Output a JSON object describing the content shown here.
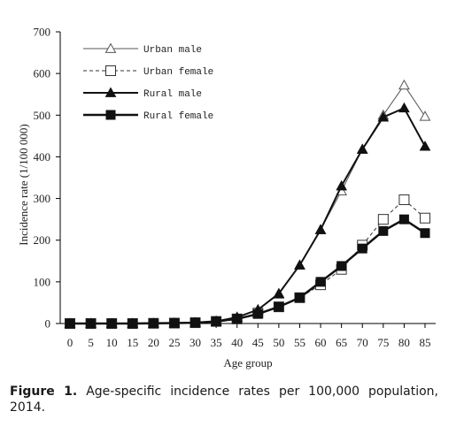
{
  "chart_data": {
    "type": "line",
    "xlabel": "Age group",
    "ylabel": "Incidence rate (1/100 000)",
    "categories": [
      "0",
      "5",
      "10",
      "15",
      "20",
      "25",
      "30",
      "35",
      "40",
      "45",
      "50",
      "55",
      "60",
      "65",
      "70",
      "75",
      "80",
      "85"
    ],
    "ylim": [
      0,
      700
    ],
    "yticks": [
      0,
      100,
      200,
      300,
      400,
      500,
      600,
      700
    ],
    "legend_position": "top-left",
    "grid": false,
    "series": [
      {
        "name": "Urban male",
        "marker": "triangle-open",
        "line": "solid",
        "values": [
          0,
          0,
          0,
          0,
          0.5,
          1,
          2,
          6,
          15,
          33,
          70,
          140,
          225,
          318,
          418,
          500,
          572,
          497
        ]
      },
      {
        "name": "Urban female",
        "marker": "square-open",
        "line": "dashed",
        "values": [
          0,
          0,
          0,
          0,
          0.5,
          1,
          2,
          5,
          11,
          25,
          40,
          62,
          93,
          130,
          188,
          250,
          297,
          253
        ]
      },
      {
        "name": "Rural male",
        "marker": "triangle-filled",
        "line": "solid",
        "values": [
          0,
          0,
          0,
          0,
          0.5,
          1,
          2,
          5,
          15,
          33,
          72,
          140,
          225,
          330,
          418,
          495,
          517,
          425
        ]
      },
      {
        "name": "Rural female",
        "marker": "square-filled",
        "line": "solid-thick",
        "values": [
          0,
          0,
          0,
          0,
          0.5,
          1,
          2,
          5,
          11,
          23,
          40,
          62,
          100,
          138,
          180,
          222,
          250,
          217
        ]
      }
    ]
  },
  "caption": {
    "lead": "Figure 1.",
    "text": "Age-specific incidence rates per 100,000 population, 2014."
  }
}
